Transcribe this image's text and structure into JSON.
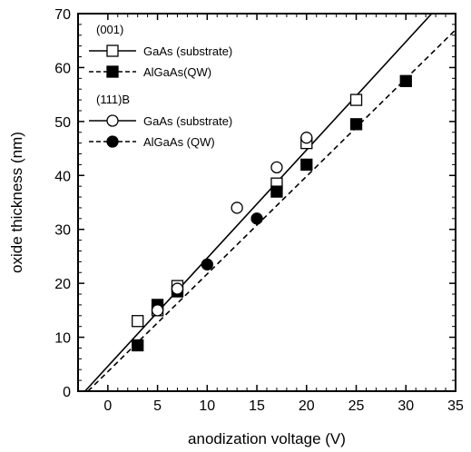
{
  "chart_data": {
    "type": "scatter",
    "xlabel": "anodization voltage (V)",
    "ylabel": "oxide thickness (nm)",
    "xlim": [
      -3,
      35
    ],
    "ylim": [
      0,
      70
    ],
    "x_ticks": [
      "0",
      "5",
      "10",
      "15",
      "20",
      "25",
      "30",
      "35"
    ],
    "y_ticks": [
      "0",
      "10",
      "20",
      "30",
      "40",
      "50",
      "60",
      "70"
    ],
    "legend_groups": [
      {
        "label": "(001)",
        "entries": [
          {
            "series": 0,
            "label": "GaAs (substrate)"
          },
          {
            "series": 1,
            "label": "AlGaAs(QW)"
          }
        ]
      },
      {
        "label": "(111)B",
        "entries": [
          {
            "series": 2,
            "label": "GaAs (substrate)"
          },
          {
            "series": 3,
            "label": "AlGaAs (QW)"
          }
        ]
      }
    ],
    "legend_position": "top-left",
    "series": [
      {
        "marker": "open-square",
        "line": "solid",
        "x": [
          3,
          5,
          7,
          17,
          20,
          25
        ],
        "y": [
          13,
          15,
          19.5,
          38.5,
          46,
          54
        ]
      },
      {
        "marker": "filled-square",
        "line": "dashed",
        "x": [
          3,
          5,
          7,
          17,
          20,
          25,
          30
        ],
        "y": [
          8.5,
          16,
          18.5,
          37,
          42,
          49.5,
          57.5
        ]
      },
      {
        "marker": "open-circle",
        "line": "solid",
        "x": [
          5,
          7,
          13,
          17,
          20
        ],
        "y": [
          15,
          19,
          34,
          41.5,
          47
        ]
      },
      {
        "marker": "filled-circle",
        "line": "dashed",
        "x": [
          10,
          15
        ],
        "y": [
          23.5,
          32
        ]
      }
    ],
    "fit_lines": [
      {
        "style": "solid",
        "x": [
          -2.3,
          32.6
        ],
        "y": [
          0,
          70
        ]
      },
      {
        "style": "dashed",
        "x": [
          -2.0,
          35
        ],
        "y": [
          0,
          67
        ]
      }
    ],
    "grid": false
  }
}
